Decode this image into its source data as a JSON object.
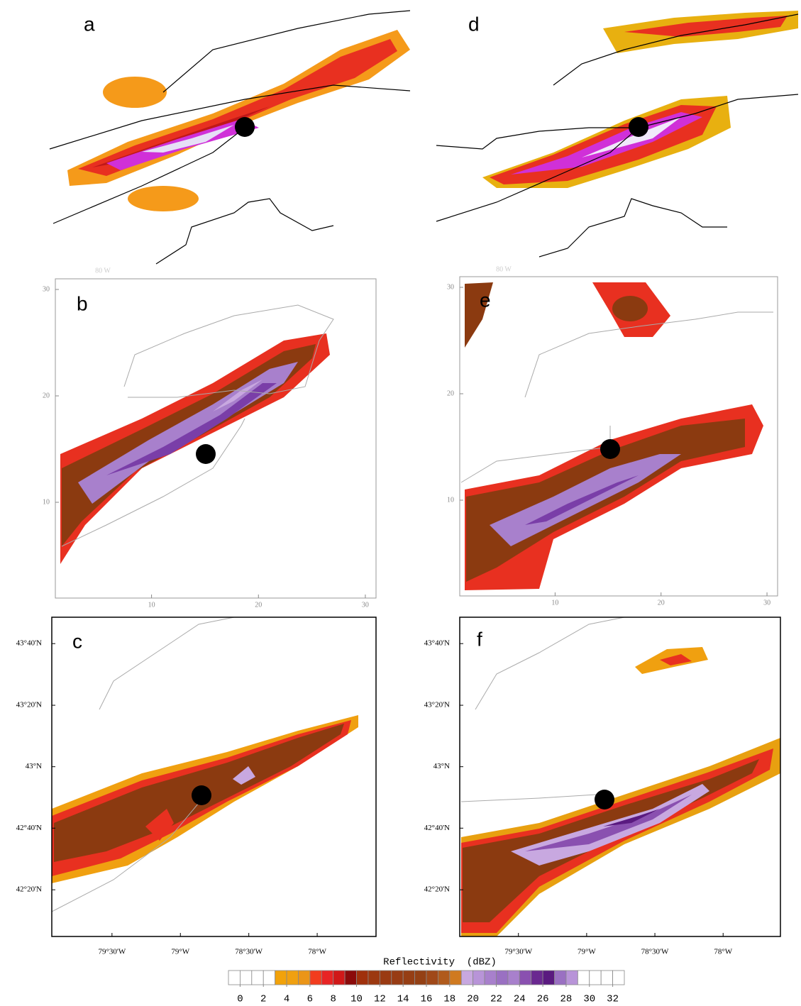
{
  "panels": [
    {
      "label": "a"
    },
    {
      "label": "b",
      "xlim": [
        1,
        31
      ],
      "ylim": [
        1,
        31
      ],
      "xticks": [
        10,
        20,
        30
      ],
      "yticks": [
        10,
        20,
        30
      ],
      "annotation": "80 W"
    },
    {
      "label": "c",
      "xlim": [
        -79.94,
        -77.57
      ],
      "ylim": [
        42.08,
        43.81
      ],
      "xticks": [
        {
          "value": -79.5,
          "label": "79°30'W"
        },
        {
          "value": -79,
          "label": "79°W"
        },
        {
          "value": -78.5,
          "label": "78°30'W"
        },
        {
          "value": -78,
          "label": "78°W"
        }
      ],
      "yticks": [
        {
          "value": 42.333,
          "label": "42°20'N"
        },
        {
          "value": 42.667,
          "label": "42°40'N"
        },
        {
          "value": 43,
          "label": "43°N"
        },
        {
          "value": 43.333,
          "label": "43°20'N"
        },
        {
          "value": 43.667,
          "label": "43°40'N"
        }
      ]
    },
    {
      "label": "d"
    },
    {
      "label": "e",
      "xlim": [
        1,
        31
      ],
      "ylim": [
        1,
        31
      ],
      "xticks": [
        10,
        20,
        30
      ],
      "yticks": [
        10,
        20,
        30
      ],
      "annotation": "80 W"
    },
    {
      "label": "f",
      "xlim": [
        -79.93,
        -77.58
      ],
      "ylim": [
        42.08,
        43.81
      ],
      "xticks": [
        {
          "value": -79.5,
          "label": "79°30'W"
        },
        {
          "value": -79,
          "label": "79°W"
        },
        {
          "value": -78.5,
          "label": "78°30'W"
        },
        {
          "value": -78,
          "label": "78°W"
        }
      ],
      "yticks": [
        {
          "value": 42.333,
          "label": "42°20'N"
        },
        {
          "value": 42.667,
          "label": "42°40'N"
        },
        {
          "value": 43,
          "label": "43°N"
        },
        {
          "value": 43.333,
          "label": "43°20'N"
        },
        {
          "value": 43.667,
          "label": "43°40'N"
        }
      ]
    }
  ],
  "colorbar": {
    "title": "Reflectivity  (dBZ)",
    "lim": [
      -1,
      33
    ],
    "ticks": [
      0,
      2,
      4,
      6,
      8,
      10,
      12,
      14,
      16,
      18,
      20,
      22,
      24,
      26,
      28,
      30,
      32
    ],
    "colors": [
      "#ffffff",
      "#ffffff",
      "#ffffff",
      "#ffffff",
      "#f2a20a",
      "#f0a010",
      "#eb9518",
      "#f23c1e",
      "#e82424",
      "#d01818",
      "#8b0a0a",
      "#a0300c",
      "#9c3810",
      "#9a3a12",
      "#983c14",
      "#963e14",
      "#944014",
      "#a04818",
      "#b05a1c",
      "#d07a20",
      "#c8a8e0",
      "#b894d8",
      "#a880cc",
      "#9a70c2",
      "#a880cc",
      "#8a50b0",
      "#6a2890",
      "#5a1a80",
      "#9a70c2",
      "#b894d8",
      "#ffffff",
      "#ffffff",
      "#ffffff",
      "#ffffff"
    ]
  }
}
